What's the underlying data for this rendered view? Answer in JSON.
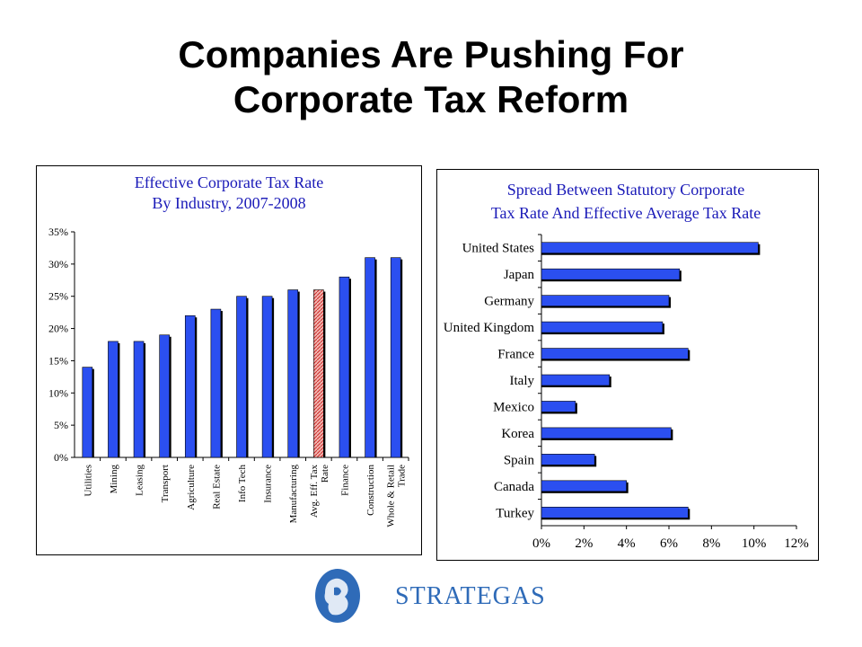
{
  "slide": {
    "title_line1": "Companies Are Pushing For",
    "title_line2": "Corporate Tax Reform"
  },
  "logo": {
    "text": "STRATEGAS"
  },
  "colors": {
    "bar": "#2b4ff0",
    "bar_shadow": "#000000",
    "highlight_bar": "#f2b6b0",
    "highlight_hatch": "#cc2a2a",
    "title": "#1a1ab8",
    "logo": "#2f6bb8"
  },
  "chart_data": [
    {
      "type": "bar",
      "title": "Effective Corporate Tax Rate",
      "subtitle": "By Industry, 2007-2008",
      "categories": [
        [
          "Utilities"
        ],
        [
          "Mining"
        ],
        [
          "Leasing"
        ],
        [
          "Transport"
        ],
        [
          "Agriculture"
        ],
        [
          "Real Estate"
        ],
        [
          "Info Tech"
        ],
        [
          "Insurance"
        ],
        [
          "Manufacturing"
        ],
        [
          "Avg. Eff. Tax",
          "Rate"
        ],
        [
          "Finance"
        ],
        [
          "Construction"
        ],
        [
          "Whole & Retail",
          "Trade"
        ]
      ],
      "values": [
        14,
        18,
        18,
        19,
        22,
        23,
        25,
        25,
        26,
        26,
        28,
        31,
        31
      ],
      "highlight_index": 9,
      "ylim": [
        0,
        35
      ],
      "yticks": [
        0,
        5,
        10,
        15,
        20,
        25,
        30,
        35
      ],
      "ytick_labels": [
        "0%",
        "5%",
        "10%",
        "15%",
        "20%",
        "25%",
        "30%",
        "35%"
      ],
      "xlabel": "",
      "ylabel": "",
      "grid": false,
      "legend": "none"
    },
    {
      "type": "bar",
      "orientation": "horizontal",
      "title": "Spread Between Statutory Corporate",
      "subtitle": "Tax Rate And Effective Average Tax Rate",
      "categories": [
        "United States",
        "Japan",
        "Germany",
        "United Kingdom",
        "France",
        "Italy",
        "Mexico",
        "Korea",
        "Spain",
        "Canada",
        "Turkey"
      ],
      "values": [
        10.2,
        6.5,
        6.0,
        5.7,
        6.9,
        3.2,
        1.6,
        6.1,
        2.5,
        4.0,
        6.9
      ],
      "xlim": [
        0,
        12
      ],
      "xticks": [
        0,
        2,
        4,
        6,
        8,
        10,
        12
      ],
      "xtick_labels": [
        "0%",
        "2%",
        "4%",
        "6%",
        "8%",
        "10%",
        "12%"
      ],
      "xlabel": "",
      "ylabel": "",
      "grid": false,
      "legend": "none"
    }
  ]
}
